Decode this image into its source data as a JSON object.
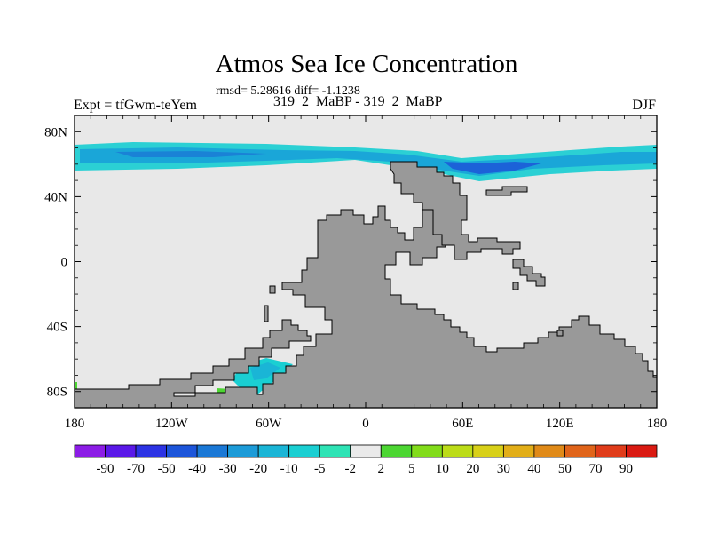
{
  "chart_data": {
    "type": "heatmap",
    "title": "Atmos Sea Ice Concentration",
    "stats": "rmsd= 5.28616 diff= -1.1238",
    "left_label": "Expt = tfGwm-teYem",
    "center_label": "319_2_MaBP - 319_2_MaBP",
    "right_label": "DJF",
    "x_range": [
      -180,
      180
    ],
    "y_range": [
      -90,
      90
    ],
    "x_ticks": [
      {
        "value": -180,
        "label": "180"
      },
      {
        "value": -120,
        "label": "120W"
      },
      {
        "value": -60,
        "label": "60W"
      },
      {
        "value": 0,
        "label": "0"
      },
      {
        "value": 60,
        "label": "60E"
      },
      {
        "value": 120,
        "label": "120E"
      },
      {
        "value": 180,
        "label": "180"
      }
    ],
    "y_ticks": [
      {
        "value": 80,
        "label": "80N"
      },
      {
        "value": 40,
        "label": "40N"
      },
      {
        "value": 0,
        "label": "0"
      },
      {
        "value": -40,
        "label": "40S"
      },
      {
        "value": -80,
        "label": "80S"
      }
    ],
    "colorbar": {
      "labels": [
        "-90",
        "-70",
        "-50",
        "-40",
        "-30",
        "-20",
        "-10",
        "-5",
        "-2",
        "2",
        "5",
        "10",
        "20",
        "30",
        "40",
        "50",
        "70",
        "90"
      ],
      "colors": [
        "#8c1ce6",
        "#5a18e8",
        "#2c33e4",
        "#1c55da",
        "#1a78d6",
        "#1c9bd8",
        "#1ab5d6",
        "#1acfd2",
        "#2ee3b5",
        "#eaeaea",
        "#4cd632",
        "#82dc1a",
        "#bcdc18",
        "#d8d018",
        "#e2ae18",
        "#e08a18",
        "#e0641a",
        "#e03c1a",
        "#da1a12"
      ]
    },
    "colors": {
      "land": "#999999",
      "ocean_zero": "#e8e8e8"
    }
  }
}
